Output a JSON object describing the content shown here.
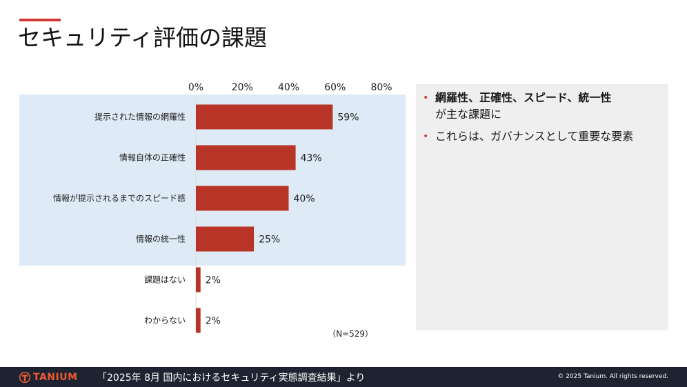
{
  "page": {
    "title": "セキュリティ評価の課題"
  },
  "chart_data": {
    "type": "bar",
    "orientation": "horizontal",
    "title": "",
    "xlabel": "",
    "ylabel": "",
    "categories": [
      "提示された情報の網羅性",
      "情報自体の正確性",
      "情報が提示されるまでのスピード感",
      "情報の統一性",
      "課題はない",
      "わからない"
    ],
    "values": [
      59,
      43,
      40,
      25,
      2,
      2
    ],
    "value_labels": [
      "59%",
      "43%",
      "40%",
      "25%",
      "2%",
      "2%"
    ],
    "xlim": [
      0,
      80
    ],
    "x_ticks": [
      0,
      20,
      40,
      60,
      80
    ],
    "x_tick_labels": [
      "0%",
      "20%",
      "40%",
      "60%",
      "80%"
    ],
    "highlighted_categories": [
      "提示された情報の網羅性",
      "情報自体の正確性",
      "情報が提示されるまでのスピード感",
      "情報の統一性"
    ],
    "sample_note": "（N=529）",
    "grid": false,
    "bar_color": "#b83427",
    "highlight_color": "#deeaf6"
  },
  "panel": {
    "bullets": [
      {
        "strong": "網羅性、正確性、スピード、統一性",
        "rest": "が主な課題に"
      },
      {
        "strong": "",
        "rest": "これらは、ガバナンスとして重要な要素"
      }
    ],
    "bullet_color": "#d13a32"
  },
  "footer": {
    "logo_text": "TANIUM",
    "source": "「2025年 8月 国内におけるセキュリティ実態調査結果」より",
    "copyright": "© 2025 Tanium. All rights reserved."
  }
}
